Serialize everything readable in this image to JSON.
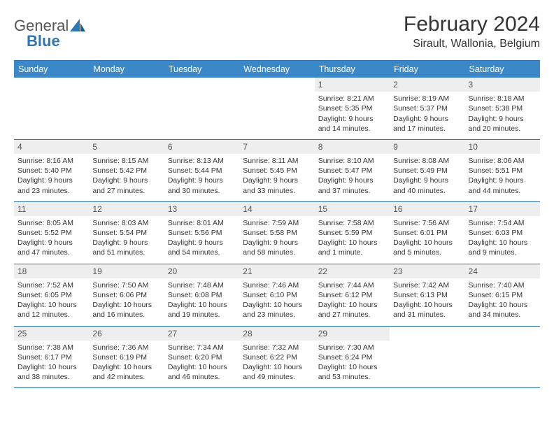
{
  "brand": {
    "part1": "General",
    "part2": "Blue"
  },
  "title": "February 2024",
  "location": "Sirault, Wallonia, Belgium",
  "colors": {
    "header_bg": "#3b88c8",
    "border": "#2f76b8",
    "daynum_bg": "#eeeeee",
    "text": "#333333"
  },
  "day_names": [
    "Sunday",
    "Monday",
    "Tuesday",
    "Wednesday",
    "Thursday",
    "Friday",
    "Saturday"
  ],
  "weeks": [
    [
      {
        "empty": true
      },
      {
        "empty": true
      },
      {
        "empty": true
      },
      {
        "empty": true
      },
      {
        "day": 1,
        "sunrise": "8:21 AM",
        "sunset": "5:35 PM",
        "daylight": "9 hours and 14 minutes."
      },
      {
        "day": 2,
        "sunrise": "8:19 AM",
        "sunset": "5:37 PM",
        "daylight": "9 hours and 17 minutes."
      },
      {
        "day": 3,
        "sunrise": "8:18 AM",
        "sunset": "5:38 PM",
        "daylight": "9 hours and 20 minutes."
      }
    ],
    [
      {
        "day": 4,
        "sunrise": "8:16 AM",
        "sunset": "5:40 PM",
        "daylight": "9 hours and 23 minutes."
      },
      {
        "day": 5,
        "sunrise": "8:15 AM",
        "sunset": "5:42 PM",
        "daylight": "9 hours and 27 minutes."
      },
      {
        "day": 6,
        "sunrise": "8:13 AM",
        "sunset": "5:44 PM",
        "daylight": "9 hours and 30 minutes."
      },
      {
        "day": 7,
        "sunrise": "8:11 AM",
        "sunset": "5:45 PM",
        "daylight": "9 hours and 33 minutes."
      },
      {
        "day": 8,
        "sunrise": "8:10 AM",
        "sunset": "5:47 PM",
        "daylight": "9 hours and 37 minutes."
      },
      {
        "day": 9,
        "sunrise": "8:08 AM",
        "sunset": "5:49 PM",
        "daylight": "9 hours and 40 minutes."
      },
      {
        "day": 10,
        "sunrise": "8:06 AM",
        "sunset": "5:51 PM",
        "daylight": "9 hours and 44 minutes."
      }
    ],
    [
      {
        "day": 11,
        "sunrise": "8:05 AM",
        "sunset": "5:52 PM",
        "daylight": "9 hours and 47 minutes."
      },
      {
        "day": 12,
        "sunrise": "8:03 AM",
        "sunset": "5:54 PM",
        "daylight": "9 hours and 51 minutes."
      },
      {
        "day": 13,
        "sunrise": "8:01 AM",
        "sunset": "5:56 PM",
        "daylight": "9 hours and 54 minutes."
      },
      {
        "day": 14,
        "sunrise": "7:59 AM",
        "sunset": "5:58 PM",
        "daylight": "9 hours and 58 minutes."
      },
      {
        "day": 15,
        "sunrise": "7:58 AM",
        "sunset": "5:59 PM",
        "daylight": "10 hours and 1 minute."
      },
      {
        "day": 16,
        "sunrise": "7:56 AM",
        "sunset": "6:01 PM",
        "daylight": "10 hours and 5 minutes."
      },
      {
        "day": 17,
        "sunrise": "7:54 AM",
        "sunset": "6:03 PM",
        "daylight": "10 hours and 9 minutes."
      }
    ],
    [
      {
        "day": 18,
        "sunrise": "7:52 AM",
        "sunset": "6:05 PM",
        "daylight": "10 hours and 12 minutes."
      },
      {
        "day": 19,
        "sunrise": "7:50 AM",
        "sunset": "6:06 PM",
        "daylight": "10 hours and 16 minutes."
      },
      {
        "day": 20,
        "sunrise": "7:48 AM",
        "sunset": "6:08 PM",
        "daylight": "10 hours and 19 minutes."
      },
      {
        "day": 21,
        "sunrise": "7:46 AM",
        "sunset": "6:10 PM",
        "daylight": "10 hours and 23 minutes."
      },
      {
        "day": 22,
        "sunrise": "7:44 AM",
        "sunset": "6:12 PM",
        "daylight": "10 hours and 27 minutes."
      },
      {
        "day": 23,
        "sunrise": "7:42 AM",
        "sunset": "6:13 PM",
        "daylight": "10 hours and 31 minutes."
      },
      {
        "day": 24,
        "sunrise": "7:40 AM",
        "sunset": "6:15 PM",
        "daylight": "10 hours and 34 minutes."
      }
    ],
    [
      {
        "day": 25,
        "sunrise": "7:38 AM",
        "sunset": "6:17 PM",
        "daylight": "10 hours and 38 minutes."
      },
      {
        "day": 26,
        "sunrise": "7:36 AM",
        "sunset": "6:19 PM",
        "daylight": "10 hours and 42 minutes."
      },
      {
        "day": 27,
        "sunrise": "7:34 AM",
        "sunset": "6:20 PM",
        "daylight": "10 hours and 46 minutes."
      },
      {
        "day": 28,
        "sunrise": "7:32 AM",
        "sunset": "6:22 PM",
        "daylight": "10 hours and 49 minutes."
      },
      {
        "day": 29,
        "sunrise": "7:30 AM",
        "sunset": "6:24 PM",
        "daylight": "10 hours and 53 minutes."
      },
      {
        "empty": true
      },
      {
        "empty": true
      }
    ]
  ]
}
